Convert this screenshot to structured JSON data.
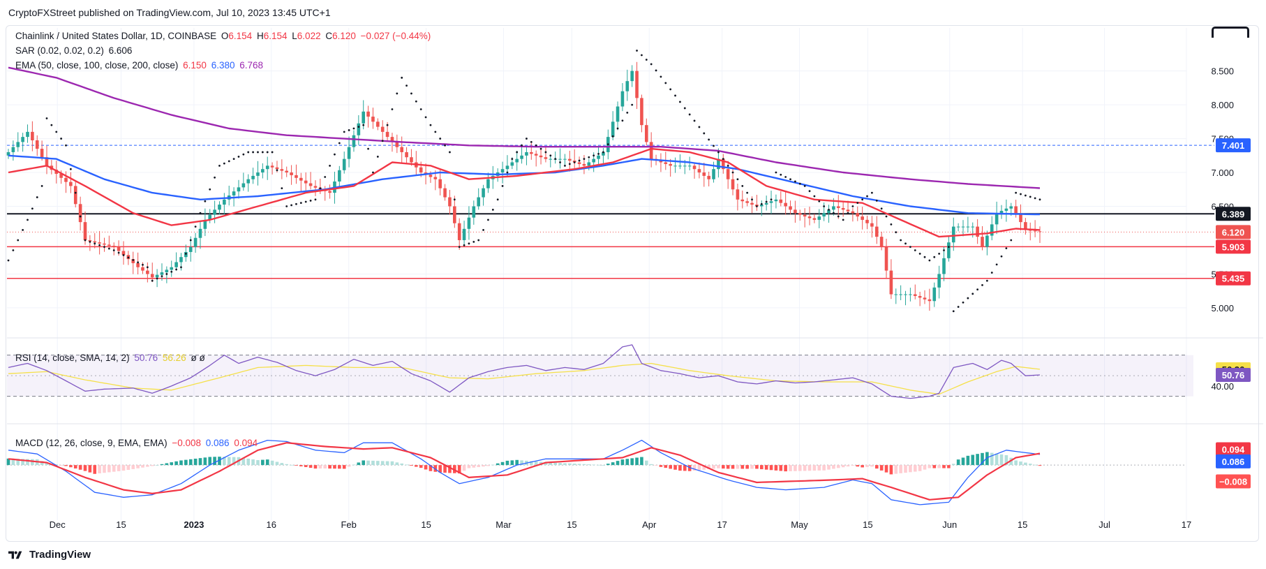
{
  "header": {
    "publisher_line": "CryptoFXStreet published on TradingView.com, Jul 10, 2023 13:45 UTC+1"
  },
  "legend": {
    "symbol": "Chainlink / United States Dollar, 1D, COINBASE",
    "o_label": "O",
    "o_value": "6.154",
    "h_label": "H",
    "h_value": "6.154",
    "l_label": "L",
    "l_value": "6.022",
    "c_label": "C",
    "c_value": "6.120",
    "change": "−0.027 (−0.44%)",
    "sar_label": "SAR (0.02, 0.02, 0.2)",
    "sar_value": "6.606",
    "ema_label": "EMA (50, close, 100, close, 200, close)",
    "ema50_value": "6.150",
    "ema100_value": "6.380",
    "ema200_value": "6.768",
    "rsi_label": "RSI (14, close, SMA, 14, 2)",
    "rsi_value": "50.76",
    "rsi_sma_value": "56.26",
    "rsi_extra": "ø  ø",
    "macd_label": "MACD (12, 26, close, 9, EMA, EMA)",
    "macd_hist_value": "−0.008",
    "macd_value": "0.086",
    "signal_value": "0.094"
  },
  "footer": {
    "brand": "TradingView"
  },
  "colors": {
    "up": "#26a69a",
    "down": "#ef5350",
    "ema50": "#f23645",
    "ema100": "#2962ff",
    "ema200": "#9c27b0",
    "rsi": "#7e57c2",
    "rsi_sma": "#f5e049",
    "macd": "#2962ff",
    "signal": "#f23645",
    "ref_blue": "#2962ff"
  },
  "chart_data": {
    "type": "candlestick",
    "x_ticks": [
      "Dec",
      "15",
      "2023",
      "16",
      "Feb",
      "15",
      "Mar",
      "15",
      "Apr",
      "17",
      "May",
      "15",
      "Jun",
      "15",
      "Jul",
      "17"
    ],
    "price_axis": {
      "ticks": [
        "8.500",
        "8.000",
        "7.500",
        "7.000",
        "6.500",
        "5.500",
        "5.000"
      ],
      "range": [
        4.7,
        8.95
      ]
    },
    "horizontal_lines": [
      {
        "label": "7.401",
        "value": 7.401,
        "style": "dashed",
        "color": "#2962ff"
      },
      {
        "label": "6.389",
        "value": 6.389,
        "style": "solid",
        "color": "#131722"
      },
      {
        "label": "5.903",
        "value": 5.903,
        "style": "solid",
        "color": "#f23645"
      },
      {
        "label": "5.435",
        "value": 5.435,
        "style": "solid",
        "color": "#f23645"
      }
    ],
    "last_price": {
      "label": "6.120",
      "value": 6.12
    },
    "price_anchors": [
      [
        0,
        7.3
      ],
      [
        4,
        7.6
      ],
      [
        8,
        7.1
      ],
      [
        13,
        6.8
      ],
      [
        16,
        6.0
      ],
      [
        22,
        5.9
      ],
      [
        27,
        5.6
      ],
      [
        30,
        5.45
      ],
      [
        34,
        5.6
      ],
      [
        38,
        5.9
      ],
      [
        41,
        6.3
      ],
      [
        45,
        6.6
      ],
      [
        50,
        6.9
      ],
      [
        54,
        7.1
      ],
      [
        58,
        7.0
      ],
      [
        63,
        6.8
      ],
      [
        67,
        6.7
      ],
      [
        70,
        7.2
      ],
      [
        74,
        7.9
      ],
      [
        78,
        7.6
      ],
      [
        82,
        7.3
      ],
      [
        86,
        7.0
      ],
      [
        89,
        6.9
      ],
      [
        92,
        6.5
      ],
      [
        94,
        6.0
      ],
      [
        97,
        6.5
      ],
      [
        100,
        6.9
      ],
      [
        104,
        7.1
      ],
      [
        108,
        7.3
      ],
      [
        112,
        7.2
      ],
      [
        116,
        7.2
      ],
      [
        120,
        7.1
      ],
      [
        124,
        7.3
      ],
      [
        128,
        8.2
      ],
      [
        130,
        8.5
      ],
      [
        132,
        7.7
      ],
      [
        134,
        7.2
      ],
      [
        138,
        7.1
      ],
      [
        142,
        7.1
      ],
      [
        146,
        6.9
      ],
      [
        148,
        7.2
      ],
      [
        152,
        6.6
      ],
      [
        156,
        6.5
      ],
      [
        160,
        6.6
      ],
      [
        164,
        6.4
      ],
      [
        168,
        6.3
      ],
      [
        172,
        6.5
      ],
      [
        176,
        6.4
      ],
      [
        180,
        6.2
      ],
      [
        182,
        5.9
      ],
      [
        184,
        5.2
      ],
      [
        188,
        5.2
      ],
      [
        192,
        5.1
      ],
      [
        194,
        5.5
      ],
      [
        197,
        6.2
      ],
      [
        201,
        6.2
      ],
      [
        203,
        5.9
      ],
      [
        206,
        6.4
      ],
      [
        209,
        6.5
      ],
      [
        212,
        6.15
      ],
      [
        215,
        6.12
      ]
    ],
    "ema50_anchors": [
      [
        0,
        7.0
      ],
      [
        8,
        7.1
      ],
      [
        16,
        6.8
      ],
      [
        26,
        6.4
      ],
      [
        34,
        6.22
      ],
      [
        42,
        6.3
      ],
      [
        52,
        6.5
      ],
      [
        62,
        6.7
      ],
      [
        72,
        6.8
      ],
      [
        80,
        7.15
      ],
      [
        88,
        7.1
      ],
      [
        96,
        6.9
      ],
      [
        106,
        6.95
      ],
      [
        118,
        7.05
      ],
      [
        126,
        7.15
      ],
      [
        134,
        7.35
      ],
      [
        142,
        7.3
      ],
      [
        150,
        7.15
      ],
      [
        158,
        6.8
      ],
      [
        168,
        6.6
      ],
      [
        178,
        6.55
      ],
      [
        186,
        6.3
      ],
      [
        194,
        6.05
      ],
      [
        204,
        6.1
      ],
      [
        210,
        6.17
      ],
      [
        215,
        6.15
      ]
    ],
    "ema100_anchors": [
      [
        0,
        7.25
      ],
      [
        10,
        7.2
      ],
      [
        20,
        6.9
      ],
      [
        30,
        6.7
      ],
      [
        40,
        6.6
      ],
      [
        52,
        6.65
      ],
      [
        66,
        6.75
      ],
      [
        78,
        6.9
      ],
      [
        90,
        7.0
      ],
      [
        102,
        6.97
      ],
      [
        114,
        7.0
      ],
      [
        124,
        7.1
      ],
      [
        132,
        7.2
      ],
      [
        142,
        7.15
      ],
      [
        152,
        7.05
      ],
      [
        164,
        6.85
      ],
      [
        176,
        6.65
      ],
      [
        188,
        6.5
      ],
      [
        200,
        6.4
      ],
      [
        215,
        6.38
      ]
    ],
    "ema200_anchors": [
      [
        0,
        8.55
      ],
      [
        10,
        8.4
      ],
      [
        22,
        8.1
      ],
      [
        34,
        7.85
      ],
      [
        46,
        7.65
      ],
      [
        58,
        7.55
      ],
      [
        70,
        7.5
      ],
      [
        82,
        7.45
      ],
      [
        96,
        7.4
      ],
      [
        110,
        7.38
      ],
      [
        124,
        7.38
      ],
      [
        136,
        7.38
      ],
      [
        148,
        7.32
      ],
      [
        160,
        7.15
      ],
      [
        174,
        7.0
      ],
      [
        188,
        6.9
      ],
      [
        200,
        6.83
      ],
      [
        215,
        6.768
      ]
    ],
    "sar_anchors": [
      [
        0,
        5.7
      ],
      [
        4,
        6.3
      ],
      [
        7,
        6.8
      ],
      [
        8,
        7.8
      ],
      [
        12,
        7.4
      ],
      [
        16,
        6.0
      ],
      [
        22,
        5.85
      ],
      [
        29,
        5.6
      ],
      [
        30,
        5.4
      ],
      [
        36,
        5.6
      ],
      [
        40,
        6.4
      ],
      [
        44,
        7.1
      ],
      [
        50,
        7.3
      ],
      [
        55,
        7.3
      ],
      [
        58,
        6.5
      ],
      [
        64,
        6.6
      ],
      [
        70,
        7.6
      ],
      [
        74,
        7.7
      ],
      [
        76,
        7.0
      ],
      [
        82,
        8.4
      ],
      [
        88,
        7.7
      ],
      [
        92,
        7.3
      ],
      [
        94,
        5.9
      ],
      [
        98,
        6.0
      ],
      [
        102,
        6.6
      ],
      [
        105,
        7.2
      ],
      [
        108,
        7.5
      ],
      [
        112,
        7.3
      ],
      [
        116,
        7.1
      ],
      [
        124,
        7.3
      ],
      [
        130,
        8.0
      ],
      [
        131,
        8.8
      ],
      [
        134,
        8.6
      ],
      [
        148,
        7.3
      ],
      [
        152,
        6.9
      ],
      [
        156,
        6.5
      ],
      [
        159,
        6.6
      ],
      [
        160,
        7.0
      ],
      [
        166,
        6.8
      ],
      [
        170,
        6.5
      ],
      [
        174,
        6.3
      ],
      [
        176,
        6.5
      ],
      [
        180,
        6.7
      ],
      [
        186,
        6.0
      ],
      [
        192,
        5.7
      ],
      [
        196,
        5.9
      ],
      [
        197,
        4.95
      ],
      [
        204,
        5.4
      ],
      [
        209,
        6.0
      ],
      [
        210,
        6.7
      ],
      [
        215,
        6.6
      ]
    ],
    "rsi": {
      "axis_ticks": [
        "40.00"
      ],
      "value_labels": [
        "56.26",
        "50.76"
      ],
      "anchors": [
        [
          0,
          58
        ],
        [
          4,
          62
        ],
        [
          8,
          55
        ],
        [
          12,
          45
        ],
        [
          16,
          35
        ],
        [
          20,
          37
        ],
        [
          26,
          38
        ],
        [
          30,
          33
        ],
        [
          34,
          40
        ],
        [
          38,
          48
        ],
        [
          42,
          60
        ],
        [
          45,
          70
        ],
        [
          48,
          62
        ],
        [
          52,
          68
        ],
        [
          56,
          63
        ],
        [
          60,
          55
        ],
        [
          64,
          50
        ],
        [
          68,
          56
        ],
        [
          72,
          66
        ],
        [
          76,
          60
        ],
        [
          80,
          64
        ],
        [
          84,
          52
        ],
        [
          88,
          45
        ],
        [
          92,
          34
        ],
        [
          96,
          48
        ],
        [
          100,
          54
        ],
        [
          104,
          58
        ],
        [
          108,
          60
        ],
        [
          112,
          55
        ],
        [
          116,
          58
        ],
        [
          120,
          56
        ],
        [
          124,
          62
        ],
        [
          128,
          78
        ],
        [
          130,
          80
        ],
        [
          132,
          62
        ],
        [
          136,
          55
        ],
        [
          140,
          52
        ],
        [
          144,
          48
        ],
        [
          148,
          50
        ],
        [
          152,
          44
        ],
        [
          156,
          42
        ],
        [
          160,
          45
        ],
        [
          164,
          43
        ],
        [
          168,
          44
        ],
        [
          172,
          46
        ],
        [
          176,
          48
        ],
        [
          180,
          42
        ],
        [
          184,
          30
        ],
        [
          188,
          28
        ],
        [
          192,
          30
        ],
        [
          194,
          33
        ],
        [
          197,
          58
        ],
        [
          201,
          62
        ],
        [
          204,
          56
        ],
        [
          207,
          65
        ],
        [
          209,
          62
        ],
        [
          212,
          50
        ],
        [
          215,
          50.76
        ]
      ],
      "sma_anchors": [
        [
          0,
          52
        ],
        [
          8,
          54
        ],
        [
          16,
          46
        ],
        [
          26,
          38
        ],
        [
          34,
          36
        ],
        [
          44,
          48
        ],
        [
          52,
          58
        ],
        [
          62,
          60
        ],
        [
          72,
          58
        ],
        [
          82,
          58
        ],
        [
          92,
          48
        ],
        [
          100,
          47
        ],
        [
          110,
          52
        ],
        [
          120,
          55
        ],
        [
          128,
          60
        ],
        [
          134,
          62
        ],
        [
          142,
          55
        ],
        [
          150,
          50
        ],
        [
          160,
          45
        ],
        [
          170,
          44
        ],
        [
          180,
          44
        ],
        [
          188,
          36
        ],
        [
          194,
          32
        ],
        [
          200,
          44
        ],
        [
          206,
          54
        ],
        [
          210,
          59
        ],
        [
          215,
          56.26
        ]
      ]
    },
    "macd": {
      "value_labels": [
        "0.094",
        "0.086",
        "−0.008"
      ],
      "macd_anchors": [
        [
          0,
          0.12
        ],
        [
          6,
          0.09
        ],
        [
          12,
          -0.05
        ],
        [
          18,
          -0.22
        ],
        [
          24,
          -0.26
        ],
        [
          30,
          -0.24
        ],
        [
          36,
          -0.15
        ],
        [
          42,
          0.0
        ],
        [
          48,
          0.12
        ],
        [
          54,
          0.2
        ],
        [
          58,
          0.19
        ],
        [
          64,
          0.12
        ],
        [
          70,
          0.1
        ],
        [
          74,
          0.18
        ],
        [
          80,
          0.18
        ],
        [
          86,
          0.05
        ],
        [
          90,
          -0.06
        ],
        [
          94,
          -0.15
        ],
        [
          100,
          -0.1
        ],
        [
          106,
          0.0
        ],
        [
          112,
          0.05
        ],
        [
          118,
          0.05
        ],
        [
          124,
          0.05
        ],
        [
          128,
          0.12
        ],
        [
          132,
          0.2
        ],
        [
          136,
          0.1
        ],
        [
          142,
          -0.02
        ],
        [
          150,
          -0.12
        ],
        [
          156,
          -0.18
        ],
        [
          162,
          -0.2
        ],
        [
          170,
          -0.18
        ],
        [
          176,
          -0.12
        ],
        [
          180,
          -0.15
        ],
        [
          184,
          -0.28
        ],
        [
          190,
          -0.32
        ],
        [
          196,
          -0.3
        ],
        [
          200,
          -0.1
        ],
        [
          204,
          0.06
        ],
        [
          208,
          0.12
        ],
        [
          212,
          0.1
        ],
        [
          215,
          0.086
        ]
      ],
      "signal_anchors": [
        [
          0,
          0.05
        ],
        [
          8,
          0.02
        ],
        [
          16,
          -0.1
        ],
        [
          24,
          -0.2
        ],
        [
          30,
          -0.23
        ],
        [
          36,
          -0.2
        ],
        [
          44,
          -0.05
        ],
        [
          52,
          0.12
        ],
        [
          58,
          0.18
        ],
        [
          66,
          0.15
        ],
        [
          74,
          0.13
        ],
        [
          80,
          0.14
        ],
        [
          88,
          0.06
        ],
        [
          96,
          -0.1
        ],
        [
          104,
          -0.08
        ],
        [
          112,
          0.02
        ],
        [
          120,
          0.04
        ],
        [
          128,
          0.06
        ],
        [
          134,
          0.14
        ],
        [
          140,
          0.08
        ],
        [
          148,
          -0.06
        ],
        [
          156,
          -0.14
        ],
        [
          164,
          -0.13
        ],
        [
          172,
          -0.12
        ],
        [
          178,
          -0.11
        ],
        [
          184,
          -0.18
        ],
        [
          192,
          -0.28
        ],
        [
          198,
          -0.26
        ],
        [
          204,
          -0.08
        ],
        [
          210,
          0.06
        ],
        [
          215,
          0.094
        ]
      ],
      "range": [
        -0.36,
        0.26
      ]
    }
  }
}
